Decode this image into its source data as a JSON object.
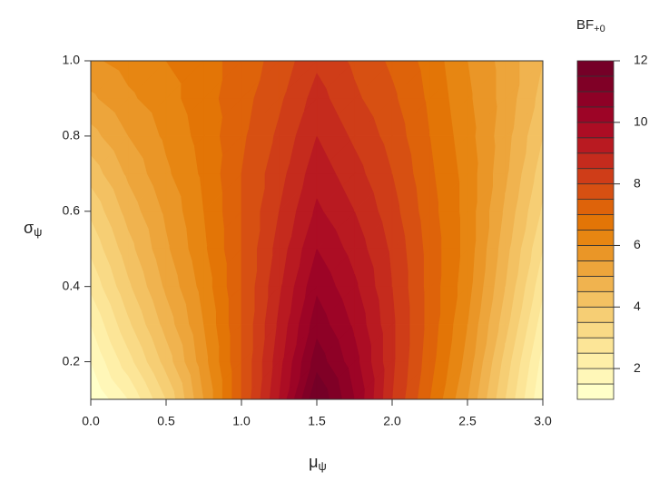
{
  "chart_data": {
    "type": "contour",
    "xlabel": {
      "main": "μ",
      "sub": "ψ"
    },
    "ylabel": {
      "main": "σ",
      "sub": "ψ"
    },
    "colorbar_title": {
      "main": "BF",
      "sub": "+0"
    },
    "x": [
      0,
      0.25,
      0.5,
      0.75,
      1,
      1.25,
      1.5,
      1.75,
      2,
      2.25,
      2.5,
      2.75,
      3
    ],
    "y": [
      0.1,
      0.2,
      0.3,
      0.4,
      0.5,
      0.6,
      0.7,
      0.8,
      0.9,
      1.0
    ],
    "z": [
      [
        1.0,
        2.0,
        3.5,
        5.5,
        7.5,
        9.5,
        12.0,
        10.5,
        8.5,
        7.0,
        5.5,
        3.5,
        1.5
      ],
      [
        1.5,
        2.8,
        4.2,
        5.8,
        7.5,
        9.3,
        11.3,
        10.2,
        8.6,
        7.2,
        5.8,
        3.8,
        1.8
      ],
      [
        2.0,
        3.4,
        4.7,
        6.0,
        7.5,
        9.1,
        10.8,
        9.9,
        8.6,
        7.3,
        6.0,
        4.2,
        2.2
      ],
      [
        2.6,
        3.9,
        5.1,
        6.2,
        7.5,
        8.9,
        10.4,
        9.6,
        8.5,
        7.3,
        6.2,
        4.5,
        2.6
      ],
      [
        3.1,
        4.3,
        5.4,
        6.4,
        7.5,
        8.7,
        10.0,
        9.3,
        8.4,
        7.3,
        6.3,
        4.7,
        3.0
      ],
      [
        3.6,
        4.7,
        5.6,
        6.5,
        7.5,
        8.5,
        9.6,
        9.0,
        8.2,
        7.2,
        6.3,
        4.9,
        3.4
      ],
      [
        4.2,
        5.1,
        5.9,
        6.6,
        7.5,
        8.3,
        9.3,
        8.7,
        8.0,
        7.1,
        6.3,
        5.1,
        3.7
      ],
      [
        4.8,
        5.5,
        6.1,
        6.7,
        7.4,
        8.1,
        9.0,
        8.4,
        7.8,
        7.0,
        6.2,
        5.2,
        4.0
      ],
      [
        5.4,
        5.9,
        6.3,
        6.8,
        7.3,
        7.9,
        8.7,
        8.1,
        7.6,
        6.9,
        6.1,
        5.3,
        4.3
      ],
      [
        5.9,
        6.2,
        6.5,
        6.8,
        7.2,
        7.7,
        8.4,
        7.9,
        7.4,
        6.8,
        6.0,
        5.3,
        4.5
      ]
    ],
    "levels": [
      1,
      1.5,
      2,
      2.5,
      3,
      3.5,
      4,
      4.5,
      5,
      5.5,
      6,
      6.5,
      7,
      7.5,
      8,
      8.5,
      9,
      9.5,
      10,
      10.5,
      11,
      11.5,
      12
    ],
    "colors": [
      "#FFFFC8",
      "#FFF7B8",
      "#FEEFA8",
      "#FCE597",
      "#F9DA86",
      "#F6CE74",
      "#F3C162",
      "#F0B34F",
      "#EDA53B",
      "#EA9627",
      "#E78612",
      "#E37506",
      "#DE630A",
      "#D75012",
      "#CF3D18",
      "#C52B1D",
      "#B91A21",
      "#AC0D24",
      "#9D0426",
      "#8E0126",
      "#800026",
      "#750027"
    ],
    "xlim": [
      0,
      3
    ],
    "ylim": [
      0.1,
      1.0
    ],
    "xticks": [
      {
        "value": 0,
        "label": "0.0"
      },
      0.5,
      {
        "value": 1,
        "label": "1.0"
      },
      1.5,
      {
        "value": 2,
        "label": "2.0"
      },
      2.5,
      {
        "value": 3,
        "label": "3.0"
      }
    ],
    "yticks": [
      0.2,
      0.4,
      0.6,
      0.8,
      {
        "value": 1,
        "label": "1.0"
      }
    ],
    "colorbar_lim": [
      1,
      12
    ],
    "colorbar_ticks": [
      2,
      4,
      6,
      8,
      10,
      12
    ]
  }
}
